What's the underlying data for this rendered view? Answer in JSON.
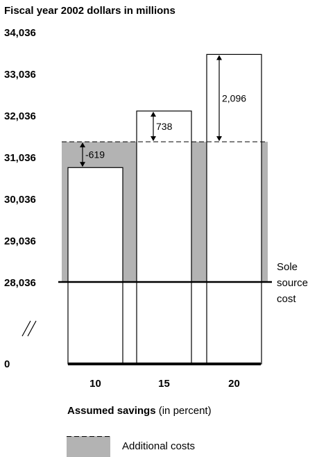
{
  "chart_data": {
    "type": "bar",
    "title": "Fiscal year 2002 dollars in millions",
    "xlabel_bold": "Assumed savings",
    "xlabel_rest": " (in percent)",
    "categories": [
      "10",
      "15",
      "20"
    ],
    "y_ticks": [
      "34,036",
      "33,036",
      "32,036",
      "31,036",
      "30,036",
      "29,036",
      "28,036",
      "0"
    ],
    "y_range": [
      28036,
      34036
    ],
    "baseline_value": 28036,
    "baseline_label": [
      "Sole",
      "source",
      "cost"
    ],
    "additional_cost_level": 31417,
    "values": [
      30798,
      32155,
      33513
    ],
    "differences": [
      "-619",
      "738",
      "2,096"
    ],
    "legend": {
      "label": "Additional costs",
      "color": "#b3b3b3"
    },
    "axis_break": "//",
    "colors": {
      "shade": "#b3b3b3",
      "bar_fill": "#ffffff",
      "line": "#000000"
    }
  }
}
